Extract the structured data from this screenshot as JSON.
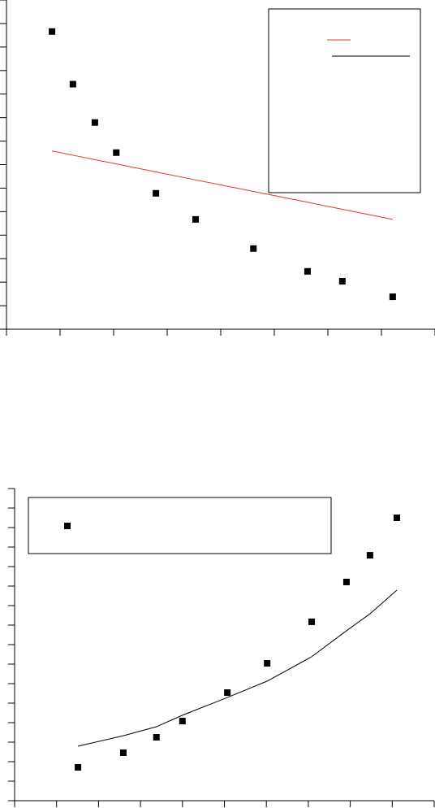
{
  "chart_data": [
    {
      "type": "scatter",
      "xlim": [
        0,
        8
      ],
      "ylim": [
        0,
        14
      ],
      "xticks": [
        0,
        1,
        2,
        3,
        4,
        5,
        6,
        7,
        8
      ],
      "yticks": [
        0,
        1,
        2,
        3,
        4,
        5,
        6,
        7,
        8,
        9,
        10,
        11,
        12,
        13,
        14
      ],
      "series": [
        {
          "style": "markers",
          "color": "#000000",
          "x": [
            0.85,
            1.24,
            1.65,
            2.05,
            2.79,
            3.53,
            4.61,
            5.62,
            6.27,
            7.21
          ],
          "values": [
            12.66,
            10.42,
            8.79,
            7.51,
            5.78,
            4.67,
            3.43,
            2.46,
            2.04,
            1.38
          ]
        },
        {
          "style": "line",
          "color": "#e8322b",
          "x": [
            0.85,
            1.24,
            1.65,
            2.05,
            2.79,
            3.53,
            4.61,
            5.62,
            6.27,
            7.21
          ],
          "values": [
            7.58,
            7.4,
            7.21,
            7.03,
            6.69,
            6.35,
            5.86,
            5.4,
            5.1,
            4.67
          ]
        }
      ]
    },
    {
      "type": "scatter",
      "xlim": [
        0,
        10
      ],
      "ylim": [
        0,
        16
      ],
      "xticks": [
        0,
        1,
        2,
        3,
        4,
        5,
        6,
        7,
        8,
        9,
        10
      ],
      "yticks": [
        0,
        1,
        2,
        3,
        4,
        5,
        6,
        7,
        8,
        9,
        10,
        11,
        12,
        13,
        14,
        15,
        16
      ],
      "series": [
        {
          "style": "markers",
          "color": "#000000",
          "x": [
            1.51,
            2.59,
            3.38,
            4.0,
            5.07,
            6.02,
            7.08,
            7.91,
            8.47,
            9.11
          ],
          "values": [
            1.71,
            2.46,
            3.25,
            4.08,
            5.54,
            7.04,
            9.17,
            11.21,
            12.58,
            14.5
          ]
        },
        {
          "style": "line",
          "color": "#000000",
          "x": [
            1.51,
            2.59,
            3.38,
            4.0,
            5.07,
            6.02,
            7.08,
            7.91,
            8.47,
            9.11
          ],
          "values": [
            2.79,
            3.33,
            3.79,
            4.38,
            5.29,
            6.13,
            7.38,
            8.71,
            9.58,
            10.79
          ]
        }
      ]
    }
  ]
}
